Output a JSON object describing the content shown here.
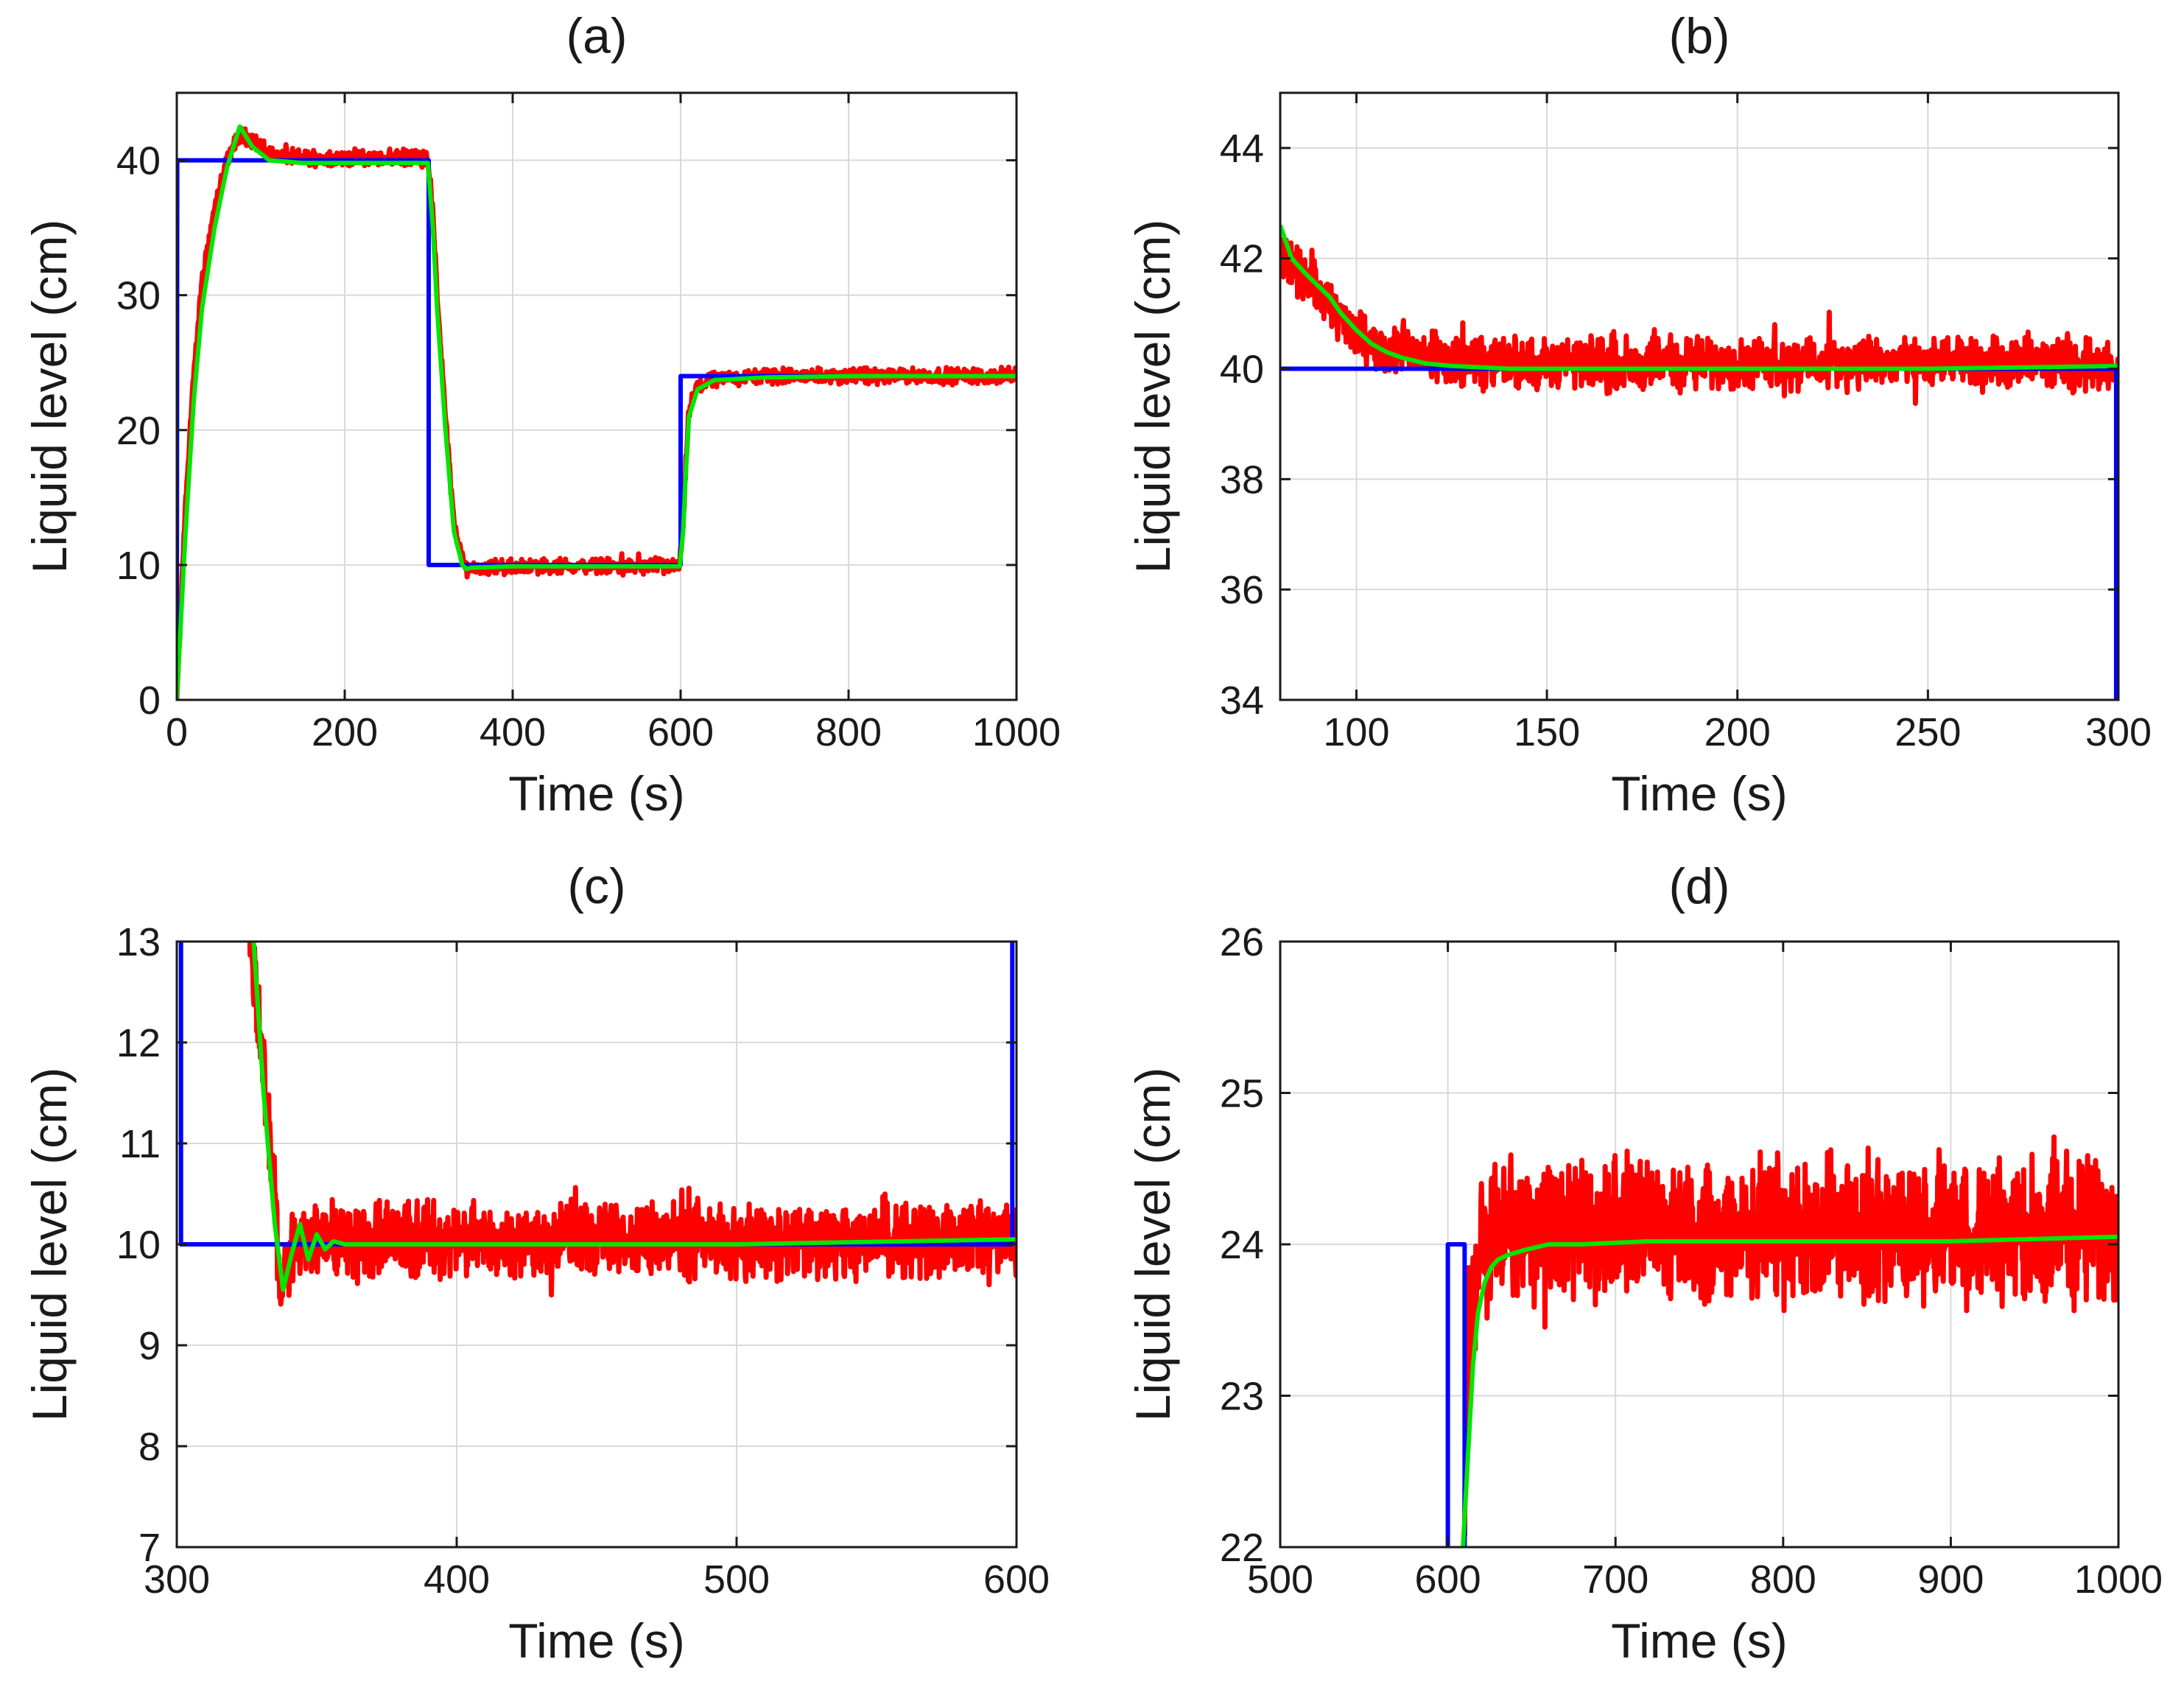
{
  "chart_data": [
    {
      "type": "line",
      "title": "(a)",
      "xlabel": "Time (s)",
      "ylabel": "Liquid level (cm)",
      "xlim": [
        0,
        1000
      ],
      "ylim": [
        0,
        45
      ],
      "xticks": [
        0,
        200,
        400,
        600,
        800,
        1000
      ],
      "yticks": [
        0,
        10,
        20,
        30,
        40
      ],
      "xtick_labels": [
        "0",
        "200",
        "400",
        "600",
        "800",
        "1000"
      ],
      "ytick_labels": [
        "0",
        "10",
        "20",
        "30",
        "40"
      ],
      "grid": true,
      "noise_amplitude": 0.7,
      "series": [
        {
          "color": "#ff0000",
          "stroke_width": 7,
          "noisy": true,
          "x": [
            0,
            10,
            20,
            30,
            45,
            60,
            75,
            90,
            110,
            130,
            150,
            200,
            250,
            299,
            305,
            310,
            320,
            330,
            340,
            345,
            350,
            400,
            500,
            599,
            603,
            606,
            610,
            620,
            640,
            700,
            800,
            900,
            1000
          ],
          "y": [
            0,
            14,
            24,
            31,
            36.5,
            40,
            42,
            41.5,
            40.5,
            40.3,
            40.2,
            40.2,
            40.2,
            40.2,
            36,
            30,
            21,
            13,
            10.4,
            9.8,
            9.8,
            9.9,
            9.9,
            9.9,
            13,
            17,
            21.5,
            23.2,
            23.8,
            24,
            24,
            24,
            24
          ]
        },
        {
          "color": "#0000ff",
          "stroke_width": 6,
          "x": [
            0,
            0.5,
            300,
            300,
            600,
            600,
            1000
          ],
          "y": [
            0,
            40,
            40,
            10,
            10,
            24,
            24
          ]
        },
        {
          "color": "#00e600",
          "stroke_width": 6,
          "x": [
            0,
            10,
            20,
            30,
            45,
            60,
            75,
            90,
            110,
            130,
            150,
            200,
            250,
            299,
            305,
            310,
            320,
            330,
            340,
            345,
            350,
            400,
            500,
            599,
            603,
            606,
            610,
            620,
            640,
            700,
            800,
            900,
            1000
          ],
          "y": [
            0,
            12,
            22,
            29,
            35,
            39.5,
            42.5,
            41,
            40,
            39.9,
            39.8,
            39.8,
            39.8,
            39.8,
            35,
            29,
            20,
            12.5,
            10,
            9.7,
            9.8,
            9.9,
            9.9,
            9.9,
            12.5,
            16.5,
            21,
            23,
            23.7,
            23.9,
            24,
            24,
            24
          ]
        }
      ]
    },
    {
      "type": "line",
      "title": "(b)",
      "xlabel": "Time (s)",
      "ylabel": "Liquid level (cm)",
      "xlim": [
        80,
        300
      ],
      "ylim": [
        34,
        45
      ],
      "xticks": [
        100,
        150,
        200,
        250,
        300
      ],
      "yticks": [
        34,
        36,
        38,
        40,
        42,
        44
      ],
      "xtick_labels": [
        "100",
        "150",
        "200",
        "250",
        "300"
      ],
      "ytick_labels": [
        "34",
        "36",
        "38",
        "40",
        "42",
        "44"
      ],
      "grid": true,
      "noise_amplitude": 0.55,
      "series": [
        {
          "color": "#ff0000",
          "stroke_width": 7,
          "noisy": true,
          "x": [
            80,
            85,
            90,
            95,
            100,
            105,
            110,
            120,
            130,
            140,
            150,
            175,
            200,
            225,
            250,
            275,
            300
          ],
          "y": [
            42.1,
            41.8,
            41.4,
            41,
            40.6,
            40.4,
            40.3,
            40.2,
            40.1,
            40.1,
            40.1,
            40.1,
            40.1,
            40.1,
            40.1,
            40.1,
            40.1
          ]
        },
        {
          "color": "#0000ff",
          "stroke_width": 6,
          "x": [
            80,
            299.4,
            299.4
          ],
          "y": [
            40,
            40,
            34
          ]
        },
        {
          "color": "#00e600",
          "stroke_width": 6,
          "x": [
            80,
            83,
            87,
            90,
            93,
            96,
            100,
            104,
            108,
            112,
            118,
            125,
            140,
            160,
            200,
            250,
            300
          ],
          "y": [
            42.6,
            42,
            41.7,
            41.5,
            41.3,
            41,
            40.7,
            40.45,
            40.3,
            40.2,
            40.1,
            40.05,
            40,
            40,
            40,
            40,
            40.05
          ]
        }
      ]
    },
    {
      "type": "line",
      "title": "(c)",
      "xlabel": "Time (s)",
      "ylabel": "Liquid level (cm)",
      "xlim": [
        300,
        600
      ],
      "ylim": [
        7,
        13
      ],
      "xticks": [
        300,
        400,
        500,
        600
      ],
      "yticks": [
        7,
        8,
        9,
        10,
        11,
        12,
        13
      ],
      "xtick_labels": [
        "300",
        "400",
        "500",
        "600"
      ],
      "ytick_labels": [
        "7",
        "8",
        "9",
        "10",
        "11",
        "12",
        "13"
      ],
      "grid": true,
      "noise_amplitude": 0.45,
      "series": [
        {
          "color": "#ff0000",
          "stroke_width": 7,
          "noisy": true,
          "x": [
            326,
            330,
            334,
            337,
            340,
            345,
            350,
            400,
            450,
            500,
            550,
            600
          ],
          "y": [
            13.2,
            12,
            10.8,
            9.6,
            9.8,
            10.1,
            10.05,
            10.05,
            10.05,
            10.05,
            10.05,
            10.05
          ]
        },
        {
          "color": "#0000ff",
          "stroke_width": 6,
          "x": [
            301.5,
            301.5,
            334,
            334,
            334,
            598.5,
            598.5
          ],
          "y": [
            13,
            10,
            10,
            10,
            10,
            10,
            13
          ]
        },
        {
          "color": "#00e600",
          "stroke_width": 6,
          "x": [
            327,
            331,
            335,
            338,
            341,
            344,
            347,
            350,
            353,
            356,
            360,
            380,
            420,
            500,
            600
          ],
          "y": [
            13.2,
            11.5,
            10.2,
            9.55,
            9.9,
            10.2,
            9.85,
            10.1,
            9.95,
            10.03,
            10,
            10,
            10,
            10,
            10.05
          ]
        }
      ]
    },
    {
      "type": "line",
      "title": "(d)",
      "xlabel": "Time (s)",
      "ylabel": "Liquid level (cm)",
      "xlim": [
        500,
        1000
      ],
      "ylim": [
        22,
        26
      ],
      "xticks": [
        500,
        600,
        700,
        800,
        900,
        1000
      ],
      "yticks": [
        22,
        23,
        24,
        25,
        26
      ],
      "xtick_labels": [
        "500",
        "600",
        "700",
        "800",
        "900",
        "1000"
      ],
      "ytick_labels": [
        "22",
        "23",
        "24",
        "25",
        "26"
      ],
      "grid": true,
      "noise_amplitude": 0.55,
      "series": [
        {
          "color": "#ff0000",
          "stroke_width": 7,
          "noisy": true,
          "x": [
            610,
            612,
            616,
            620,
            630,
            650,
            700,
            800,
            900,
            1000
          ],
          "y": [
            22,
            23.3,
            23.8,
            24,
            24.1,
            24.1,
            24.1,
            24.1,
            24.1,
            24.1
          ]
        },
        {
          "color": "#0000ff",
          "stroke_width": 6,
          "x": [
            600,
            600,
            610,
            610
          ],
          "y": [
            22,
            24,
            24,
            22
          ]
        },
        {
          "color": "#00e600",
          "stroke_width": 6,
          "x": [
            609,
            612,
            615,
            618,
            622,
            626,
            630,
            636,
            645,
            660,
            680,
            720,
            800,
            900,
            1000
          ],
          "y": [
            22,
            22.6,
            23.2,
            23.55,
            23.75,
            23.85,
            23.9,
            23.93,
            23.96,
            24,
            24,
            24.02,
            24.02,
            24.02,
            24.05
          ]
        }
      ]
    }
  ]
}
